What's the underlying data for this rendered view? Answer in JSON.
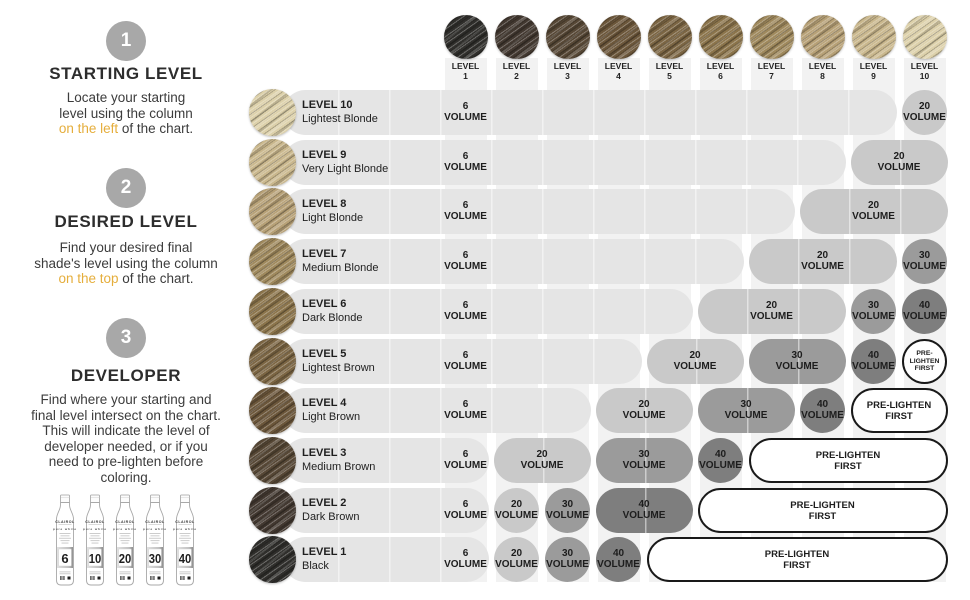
{
  "colors": {
    "accent_gold": "#E5AE3C",
    "step_circle": "#a8a8a8",
    "column_strip": "#f2f2f2",
    "row_base": "#e5e5e5",
    "vol20": "#c9c9c9",
    "vol30": "#9b9b9b",
    "vol40": "#7e7e7e",
    "prelighten_bg": "#ffffff",
    "text_dark": "#1d1d1d"
  },
  "steps": [
    {
      "number": "1",
      "title": "STARTING LEVEL",
      "lines": [
        [
          {
            "text": "Locate your starting"
          }
        ],
        [
          {
            "text": "level using the column"
          }
        ],
        [
          {
            "text": "on the left",
            "gold": true
          },
          {
            "text": " of the chart."
          }
        ]
      ]
    },
    {
      "number": "2",
      "title": "DESIRED LEVEL",
      "lines": [
        [
          {
            "text": "Find your desired final"
          }
        ],
        [
          {
            "text": "shade's level using the column"
          }
        ],
        [
          {
            "text": "on the top",
            "gold": true
          },
          {
            "text": " of the chart."
          }
        ]
      ]
    },
    {
      "number": "3",
      "title": "DEVELOPER",
      "lines": [
        [
          {
            "text": "Find where your starting and"
          }
        ],
        [
          {
            "text": "final level intersect on the chart."
          }
        ],
        [
          {
            "text": "This will indicate the level of"
          }
        ],
        [
          {
            "text": "developer needed, or if you"
          }
        ],
        [
          {
            "text": "need to pre-lighten before"
          }
        ],
        [
          {
            "text": "coloring."
          }
        ]
      ]
    }
  ],
  "bottles": {
    "brand": "CLAIROL",
    "product": "pure white",
    "volumes": [
      "6",
      "10",
      "20",
      "30",
      "40"
    ]
  },
  "header_levels": [
    {
      "label": "LEVEL",
      "number": "1",
      "swatch": "#2f2e2b"
    },
    {
      "label": "LEVEL",
      "number": "2",
      "swatch": "#423830"
    },
    {
      "label": "LEVEL",
      "number": "3",
      "swatch": "#564735"
    },
    {
      "label": "LEVEL",
      "number": "4",
      "swatch": "#6b563a"
    },
    {
      "label": "LEVEL",
      "number": "5",
      "swatch": "#7b6543"
    },
    {
      "label": "LEVEL",
      "number": "6",
      "swatch": "#8b744b"
    },
    {
      "label": "LEVEL",
      "number": "7",
      "swatch": "#9f895d"
    },
    {
      "label": "LEVEL",
      "number": "8",
      "swatch": "#b7a177"
    },
    {
      "label": "LEVEL",
      "number": "9",
      "swatch": "#cab88e"
    },
    {
      "label": "LEVEL",
      "number": "10",
      "swatch": "#ddd1ab"
    }
  ],
  "rows": [
    {
      "level_label": "LEVEL 10",
      "shade_name": "Lightest Blonde",
      "swatch": "#ddd1ab",
      "base_cols": 9,
      "base_lines": [
        "6",
        "VOLUME"
      ],
      "cells": [
        {
          "shape": "circle",
          "vol": "20",
          "start": 10,
          "end": 10,
          "lines": [
            "20",
            "VOLUME"
          ]
        }
      ]
    },
    {
      "level_label": "LEVEL 9",
      "shade_name": "Very Light Blonde",
      "swatch": "#cab88e",
      "base_cols": 8,
      "base_lines": [
        "6",
        "VOLUME"
      ],
      "cells": [
        {
          "shape": "pill",
          "vol": "20",
          "start": 9,
          "end": 10,
          "lines": [
            "20",
            "VOLUME"
          ]
        }
      ]
    },
    {
      "level_label": "LEVEL 8",
      "shade_name": "Light Blonde",
      "swatch": "#b7a177",
      "base_cols": 7,
      "base_lines": [
        "6",
        "VOLUME"
      ],
      "cells": [
        {
          "shape": "pill",
          "vol": "20",
          "start": 8,
          "end": 10,
          "lines": [
            "20",
            "VOLUME"
          ]
        }
      ]
    },
    {
      "level_label": "LEVEL 7",
      "shade_name": "Medium Blonde",
      "swatch": "#9f895d",
      "base_cols": 6,
      "base_lines": [
        "6",
        "VOLUME"
      ],
      "cells": [
        {
          "shape": "pill",
          "vol": "20",
          "start": 7,
          "end": 9,
          "lines": [
            "20",
            "VOLUME"
          ]
        },
        {
          "shape": "circle",
          "vol": "30",
          "start": 10,
          "end": 10,
          "lines": [
            "30",
            "VOLUME"
          ]
        }
      ]
    },
    {
      "level_label": "LEVEL 6",
      "shade_name": "Dark Blonde",
      "swatch": "#8b744b",
      "base_cols": 5,
      "base_lines": [
        "6",
        "VOLUME"
      ],
      "cells": [
        {
          "shape": "pill",
          "vol": "20",
          "start": 6,
          "end": 8,
          "lines": [
            "20",
            "VOLUME"
          ]
        },
        {
          "shape": "circle",
          "vol": "30",
          "start": 9,
          "end": 9,
          "lines": [
            "30",
            "VOLUME"
          ]
        },
        {
          "shape": "circle",
          "vol": "40",
          "start": 10,
          "end": 10,
          "lines": [
            "40",
            "VOLUME"
          ]
        }
      ]
    },
    {
      "level_label": "LEVEL 5",
      "shade_name": "Lightest Brown",
      "swatch": "#7b6543",
      "base_cols": 4,
      "base_lines": [
        "6",
        "VOLUME"
      ],
      "cells": [
        {
          "shape": "pill",
          "vol": "20",
          "start": 5,
          "end": 6,
          "lines": [
            "20",
            "VOLUME"
          ]
        },
        {
          "shape": "pill",
          "vol": "30",
          "start": 7,
          "end": 8,
          "lines": [
            "30",
            "VOLUME"
          ]
        },
        {
          "shape": "circle",
          "vol": "40",
          "start": 9,
          "end": 9,
          "lines": [
            "40",
            "VOLUME"
          ]
        },
        {
          "shape": "circle",
          "vol": "PL",
          "start": 10,
          "end": 10,
          "lines": [
            "PRE-",
            "LIGHTEN",
            "FIRST"
          ]
        }
      ]
    },
    {
      "level_label": "LEVEL 4",
      "shade_name": "Light Brown",
      "swatch": "#6b563a",
      "base_cols": 3,
      "base_lines": [
        "6",
        "VOLUME"
      ],
      "cells": [
        {
          "shape": "pill",
          "vol": "20",
          "start": 4,
          "end": 5,
          "lines": [
            "20",
            "VOLUME"
          ]
        },
        {
          "shape": "pill",
          "vol": "30",
          "start": 6,
          "end": 7,
          "lines": [
            "30",
            "VOLUME"
          ]
        },
        {
          "shape": "circle",
          "vol": "40",
          "start": 8,
          "end": 8,
          "lines": [
            "40",
            "VOLUME"
          ]
        },
        {
          "shape": "pill",
          "vol": "PL",
          "start": 9,
          "end": 10,
          "lines": [
            "PRE-LIGHTEN",
            "FIRST"
          ]
        }
      ]
    },
    {
      "level_label": "LEVEL 3",
      "shade_name": "Medium Brown",
      "swatch": "#564735",
      "base_cols": 1,
      "base_lines": [
        "6",
        "VOLUME"
      ],
      "cells": [
        {
          "shape": "pill",
          "vol": "20",
          "start": 2,
          "end": 3,
          "lines": [
            "20",
            "VOLUME"
          ]
        },
        {
          "shape": "pill",
          "vol": "30",
          "start": 4,
          "end": 5,
          "lines": [
            "30",
            "VOLUME"
          ]
        },
        {
          "shape": "circle",
          "vol": "40",
          "start": 6,
          "end": 6,
          "lines": [
            "40",
            "VOLUME"
          ]
        },
        {
          "shape": "pill",
          "vol": "PL",
          "start": 7,
          "end": 10,
          "lines": [
            "PRE-LIGHTEN",
            "FIRST"
          ]
        }
      ]
    },
    {
      "level_label": "LEVEL 2",
      "shade_name": "Dark Brown",
      "swatch": "#423830",
      "base_cols": 1,
      "base_lines": [
        "6",
        "VOLUME"
      ],
      "cells": [
        {
          "shape": "circle",
          "vol": "20",
          "start": 2,
          "end": 2,
          "lines": [
            "20",
            "VOLUME"
          ]
        },
        {
          "shape": "circle",
          "vol": "30",
          "start": 3,
          "end": 3,
          "lines": [
            "30",
            "VOLUME"
          ]
        },
        {
          "shape": "pill",
          "vol": "40",
          "start": 4,
          "end": 5,
          "lines": [
            "40",
            "VOLUME"
          ]
        },
        {
          "shape": "pill",
          "vol": "PL",
          "start": 6,
          "end": 10,
          "lines": [
            "PRE-LIGHTEN",
            "FIRST"
          ]
        }
      ]
    },
    {
      "level_label": "LEVEL 1",
      "shade_name": "Black",
      "swatch": "#2f2e2b",
      "base_cols": 1,
      "base_lines": [
        "6",
        "VOLUME"
      ],
      "cells": [
        {
          "shape": "circle",
          "vol": "20",
          "start": 2,
          "end": 2,
          "lines": [
            "20",
            "VOLUME"
          ]
        },
        {
          "shape": "circle",
          "vol": "30",
          "start": 3,
          "end": 3,
          "lines": [
            "30",
            "VOLUME"
          ]
        },
        {
          "shape": "circle",
          "vol": "40",
          "start": 4,
          "end": 4,
          "lines": [
            "40",
            "VOLUME"
          ]
        },
        {
          "shape": "pill",
          "vol": "PL",
          "start": 5,
          "end": 10,
          "lines": [
            "PRE-LIGHTEN",
            "FIRST"
          ]
        }
      ]
    }
  ],
  "chart_data": {
    "type": "table",
    "title": "Developer selection chart (starting level vs desired level)",
    "columns": [
      "Level 1",
      "Level 2",
      "Level 3",
      "Level 4",
      "Level 5",
      "Level 6",
      "Level 7",
      "Level 8",
      "Level 9",
      "Level 10"
    ],
    "rows": [
      {
        "starting_level": "Level 10 Lightest Blonde",
        "values": [
          "6 VOLUME",
          "6 VOLUME",
          "6 VOLUME",
          "6 VOLUME",
          "6 VOLUME",
          "6 VOLUME",
          "6 VOLUME",
          "6 VOLUME",
          "6 VOLUME",
          "20 VOLUME"
        ]
      },
      {
        "starting_level": "Level 9 Very Light Blonde",
        "values": [
          "6 VOLUME",
          "6 VOLUME",
          "6 VOLUME",
          "6 VOLUME",
          "6 VOLUME",
          "6 VOLUME",
          "6 VOLUME",
          "6 VOLUME",
          "20 VOLUME",
          "20 VOLUME"
        ]
      },
      {
        "starting_level": "Level 8 Light Blonde",
        "values": [
          "6 VOLUME",
          "6 VOLUME",
          "6 VOLUME",
          "6 VOLUME",
          "6 VOLUME",
          "6 VOLUME",
          "6 VOLUME",
          "20 VOLUME",
          "20 VOLUME",
          "20 VOLUME"
        ]
      },
      {
        "starting_level": "Level 7 Medium Blonde",
        "values": [
          "6 VOLUME",
          "6 VOLUME",
          "6 VOLUME",
          "6 VOLUME",
          "6 VOLUME",
          "6 VOLUME",
          "20 VOLUME",
          "20 VOLUME",
          "20 VOLUME",
          "30 VOLUME"
        ]
      },
      {
        "starting_level": "Level 6 Dark Blonde",
        "values": [
          "6 VOLUME",
          "6 VOLUME",
          "6 VOLUME",
          "6 VOLUME",
          "6 VOLUME",
          "20 VOLUME",
          "20 VOLUME",
          "20 VOLUME",
          "30 VOLUME",
          "40 VOLUME"
        ]
      },
      {
        "starting_level": "Level 5 Lightest Brown",
        "values": [
          "6 VOLUME",
          "6 VOLUME",
          "6 VOLUME",
          "6 VOLUME",
          "20 VOLUME",
          "20 VOLUME",
          "30 VOLUME",
          "30 VOLUME",
          "40 VOLUME",
          "PRE-LIGHTEN FIRST"
        ]
      },
      {
        "starting_level": "Level 4 Light Brown",
        "values": [
          "6 VOLUME",
          "6 VOLUME",
          "6 VOLUME",
          "20 VOLUME",
          "20 VOLUME",
          "30 VOLUME",
          "30 VOLUME",
          "40 VOLUME",
          "PRE-LIGHTEN FIRST",
          "PRE-LIGHTEN FIRST"
        ]
      },
      {
        "starting_level": "Level 3 Medium Brown",
        "values": [
          "6 VOLUME",
          "20 VOLUME",
          "20 VOLUME",
          "30 VOLUME",
          "30 VOLUME",
          "40 VOLUME",
          "PRE-LIGHTEN FIRST",
          "PRE-LIGHTEN FIRST",
          "PRE-LIGHTEN FIRST",
          "PRE-LIGHTEN FIRST"
        ]
      },
      {
        "starting_level": "Level 2 Dark Brown",
        "values": [
          "6 VOLUME",
          "20 VOLUME",
          "30 VOLUME",
          "40 VOLUME",
          "40 VOLUME",
          "PRE-LIGHTEN FIRST",
          "PRE-LIGHTEN FIRST",
          "PRE-LIGHTEN FIRST",
          "PRE-LIGHTEN FIRST",
          "PRE-LIGHTEN FIRST"
        ]
      },
      {
        "starting_level": "Level 1 Black",
        "values": [
          "6 VOLUME",
          "20 VOLUME",
          "30 VOLUME",
          "40 VOLUME",
          "PRE-LIGHTEN FIRST",
          "PRE-LIGHTEN FIRST",
          "PRE-LIGHTEN FIRST",
          "PRE-LIGHTEN FIRST",
          "PRE-LIGHTEN FIRST",
          "PRE-LIGHTEN FIRST"
        ]
      }
    ]
  }
}
